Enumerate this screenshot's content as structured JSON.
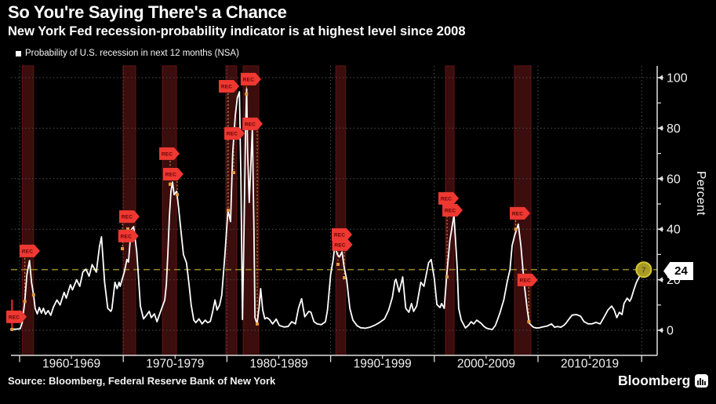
{
  "header": {
    "title": "So You're Saying There's a Chance",
    "subtitle": "New York Fed recession-probability indicator is at highest level since 2008"
  },
  "legend": {
    "label": "Probability of U.S. recession in next 12 months (NSA)",
    "swatch_color": "#ffffff"
  },
  "axes": {
    "y_title": "Percent",
    "y_ticks": [
      0,
      20,
      40,
      60,
      80,
      100
    ],
    "y_minor_ticks": [
      10,
      30,
      50,
      70,
      90
    ],
    "x_labels": [
      "1960-1969",
      "1970-1979",
      "1980-1989",
      "1990-1999",
      "2000-2009",
      "2010-2019"
    ]
  },
  "current": {
    "value": 24,
    "value_label": "24",
    "point_label": "7"
  },
  "footer": {
    "source": "Source: Bloomberg, Federal Reserve Bank of New York",
    "brand": "Bloomberg",
    "brand_icon": "bar-chart-icon"
  },
  "colors": {
    "background": "#000000",
    "band": "#3b0d0d",
    "band_edge": "#661313",
    "flag": "#ee3831",
    "flag_text": "#5f0707",
    "leader": "#c98a3a",
    "marker": "#e09a40",
    "pole": "#cc2626",
    "threshold": "#8e8122",
    "point_fill": "#a89b26",
    "point_ring": "#d6c832",
    "point_text": "#5f5716",
    "curve": "#ffffff",
    "grid": "#4f4f4f",
    "axis": "#e0e0e0",
    "label": "#f2f2f2",
    "badge_bg": "#ffffff",
    "badge_text": "#000000"
  },
  "chart_data": {
    "type": "line",
    "title": "So You're Saying There's a Chance",
    "subtitle": "New York Fed recession-probability indicator is at highest level since 2008",
    "xlabel": "",
    "ylabel": "Percent",
    "ylim": [
      0,
      100
    ],
    "x_range_years": [
      1959.1,
      2021.5
    ],
    "grid": true,
    "legend_position": "top-left",
    "x_decade_lines": [
      1960,
      1970,
      1980,
      1990,
      2000,
      2010,
      2020
    ],
    "x_tick_label_ranges": [
      "1960-1969",
      "1970-1979",
      "1980-1989",
      "1990-1999",
      "2000-2009",
      "2010-2019"
    ],
    "threshold": {
      "value": 24,
      "style": "dashed"
    },
    "end_point": {
      "year": 2020.2,
      "value": 24,
      "label": "7"
    },
    "recession_bands": [
      [
        1960.25,
        1961.35
      ],
      [
        1969.98,
        1971.2
      ],
      [
        1973.77,
        1975.13
      ],
      [
        1979.89,
        1980.95
      ],
      [
        1981.56,
        1983.07
      ],
      [
        1990.5,
        1991.45
      ],
      [
        2001.08,
        2001.91
      ],
      [
        2007.73,
        2009.32
      ]
    ],
    "rec_flags": [
      {
        "label": "REC",
        "year": 1959.7,
        "value": 5.3,
        "marker_year": 1959.27,
        "marker_value": 0.3,
        "solid": true
      },
      {
        "label": "REC",
        "year": 1960.98,
        "value": 31.4,
        "marker_year": 1960.5,
        "marker_value": 11.4
      },
      {
        "label": "REC",
        "year": 1970.59,
        "value": 45.0,
        "marker_year": 1969.91,
        "marker_value": 32.3
      },
      {
        "label": "REC",
        "year": 1970.5,
        "value": 37.3,
        "marker_year": 1970.44,
        "marker_value": 40.1
      },
      {
        "label": "REC",
        "year": 1974.45,
        "value": 69.9,
        "marker_year": 1974.52,
        "marker_value": 57.8
      },
      {
        "label": "REC",
        "year": 1974.82,
        "value": 61.8,
        "marker_year": 1975.2,
        "marker_value": 53.7
      },
      {
        "label": "REC",
        "year": 1980.2,
        "value": 96.6,
        "marker_year": 1980.12,
        "marker_value": 47.5
      },
      {
        "label": "REC",
        "year": 1980.73,
        "value": 77.9,
        "marker_year": 1980.65,
        "marker_value": 62.4
      },
      {
        "label": "REC",
        "year": 1982.31,
        "value": 99.4,
        "marker_year": 1981.88,
        "marker_value": 93.5
      },
      {
        "label": "REC",
        "year": 1982.47,
        "value": 81.7,
        "marker_year": 1982.92,
        "marker_value": 2.5
      },
      {
        "label": "REC",
        "year": 1991.09,
        "value": 37.9,
        "marker_year": 1990.71,
        "marker_value": 26.1
      },
      {
        "label": "REC",
        "year": 1991.13,
        "value": 33.9,
        "marker_year": 1991.32,
        "marker_value": 20.8
      },
      {
        "label": "REC",
        "year": 2001.38,
        "value": 52.2,
        "marker_year": 2001.23,
        "marker_value": 21.1
      },
      {
        "label": "REC",
        "year": 2001.76,
        "value": 47.5,
        "marker_year": 2001.91,
        "marker_value": 46.3
      },
      {
        "label": "REC",
        "year": 2008.26,
        "value": 46.3,
        "marker_year": 2007.85,
        "marker_value": 40.0
      },
      {
        "label": "REC",
        "year": 2009.0,
        "value": 19.9,
        "marker_year": 2009.12,
        "marker_value": 3.4
      }
    ],
    "extra_markers": [
      [
        1961.35,
        14
      ]
    ],
    "series": [
      {
        "name": "Probability of U.S. recession in next 12 months (NSA)",
        "color": "#ffffff",
        "points": [
          [
            1959.15,
            0.4
          ],
          [
            1959.6,
            0.4
          ],
          [
            1960.05,
            0.6
          ],
          [
            1960.25,
            3
          ],
          [
            1960.5,
            11.4
          ],
          [
            1960.7,
            22
          ],
          [
            1960.95,
            27.6
          ],
          [
            1961.15,
            19
          ],
          [
            1961.35,
            14
          ],
          [
            1961.5,
            8.7
          ],
          [
            1961.7,
            6.5
          ],
          [
            1961.9,
            9
          ],
          [
            1962.1,
            6.8
          ],
          [
            1962.3,
            8.7
          ],
          [
            1962.5,
            6.3
          ],
          [
            1962.75,
            7.8
          ],
          [
            1963.0,
            5.9
          ],
          [
            1963.25,
            9.1
          ],
          [
            1963.6,
            12
          ],
          [
            1963.9,
            10
          ],
          [
            1964.3,
            15
          ],
          [
            1964.5,
            12.7
          ],
          [
            1964.9,
            18
          ],
          [
            1965.1,
            16
          ],
          [
            1965.5,
            20
          ],
          [
            1965.8,
            17.4
          ],
          [
            1966.1,
            23
          ],
          [
            1966.4,
            24.2
          ],
          [
            1966.7,
            21.4
          ],
          [
            1967.0,
            26
          ],
          [
            1967.4,
            23
          ],
          [
            1967.7,
            33
          ],
          [
            1967.9,
            37
          ],
          [
            1968.2,
            19
          ],
          [
            1968.5,
            8.7
          ],
          [
            1968.8,
            7.5
          ],
          [
            1968.9,
            8.5
          ],
          [
            1969.2,
            19
          ],
          [
            1969.4,
            16.5
          ],
          [
            1969.6,
            19
          ],
          [
            1969.7,
            17.4
          ],
          [
            1970.1,
            23
          ],
          [
            1970.35,
            28
          ],
          [
            1970.5,
            27
          ],
          [
            1970.75,
            39.7
          ],
          [
            1971.0,
            41
          ],
          [
            1971.3,
            31
          ],
          [
            1971.5,
            19
          ],
          [
            1971.65,
            9.6
          ],
          [
            1971.95,
            4.5
          ],
          [
            1972.25,
            6
          ],
          [
            1972.5,
            7.5
          ],
          [
            1972.7,
            5
          ],
          [
            1973.0,
            6.5
          ],
          [
            1973.25,
            3.4
          ],
          [
            1973.6,
            7.5
          ],
          [
            1974.0,
            12
          ],
          [
            1974.15,
            18
          ],
          [
            1974.3,
            30
          ],
          [
            1974.45,
            45
          ],
          [
            1974.6,
            55
          ],
          [
            1974.75,
            58.7
          ],
          [
            1974.9,
            53.7
          ],
          [
            1975.15,
            55
          ],
          [
            1975.35,
            48
          ],
          [
            1975.6,
            38
          ],
          [
            1975.8,
            30
          ],
          [
            1976.1,
            26.7
          ],
          [
            1976.35,
            18
          ],
          [
            1976.55,
            10
          ],
          [
            1976.8,
            4
          ],
          [
            1977.0,
            3
          ],
          [
            1977.3,
            4.5
          ],
          [
            1977.6,
            2.5
          ],
          [
            1977.9,
            4
          ],
          [
            1978.15,
            3
          ],
          [
            1978.4,
            3.5
          ],
          [
            1978.6,
            7
          ],
          [
            1978.85,
            12
          ],
          [
            1979.05,
            8
          ],
          [
            1979.3,
            10
          ],
          [
            1979.5,
            14
          ],
          [
            1979.8,
            30
          ],
          [
            1980.1,
            47.5
          ],
          [
            1980.35,
            43
          ],
          [
            1980.55,
            70
          ],
          [
            1980.8,
            85
          ],
          [
            1981.0,
            92
          ],
          [
            1981.2,
            94.4
          ],
          [
            1981.35,
            60
          ],
          [
            1981.5,
            4.3
          ],
          [
            1981.65,
            40
          ],
          [
            1981.8,
            80
          ],
          [
            1981.9,
            95.6
          ],
          [
            1982.0,
            70
          ],
          [
            1982.15,
            50.6
          ],
          [
            1982.3,
            65
          ],
          [
            1982.45,
            80
          ],
          [
            1982.6,
            40
          ],
          [
            1982.7,
            5
          ],
          [
            1982.9,
            2.5
          ],
          [
            1983.1,
            9
          ],
          [
            1983.25,
            16.5
          ],
          [
            1983.45,
            8
          ],
          [
            1983.65,
            4.5
          ],
          [
            1983.85,
            5
          ],
          [
            1984.1,
            4.3
          ],
          [
            1984.4,
            2.5
          ],
          [
            1984.75,
            4.4
          ],
          [
            1985.05,
            1.9
          ],
          [
            1985.5,
            1.3
          ],
          [
            1985.9,
            1.5
          ],
          [
            1986.25,
            3.4
          ],
          [
            1986.6,
            2.5
          ],
          [
            1986.9,
            8.7
          ],
          [
            1987.2,
            12.5
          ],
          [
            1987.5,
            5.3
          ],
          [
            1987.9,
            7.5
          ],
          [
            1988.1,
            7.1
          ],
          [
            1988.4,
            3.4
          ],
          [
            1988.7,
            2.5
          ],
          [
            1989.1,
            2.2
          ],
          [
            1989.5,
            3.4
          ],
          [
            1989.7,
            8
          ],
          [
            1990.0,
            22
          ],
          [
            1990.25,
            28
          ],
          [
            1990.4,
            33.5
          ],
          [
            1990.65,
            30
          ],
          [
            1990.85,
            29
          ],
          [
            1991.1,
            31
          ],
          [
            1991.3,
            25
          ],
          [
            1991.55,
            20
          ],
          [
            1991.85,
            8.7
          ],
          [
            1992.15,
            4
          ],
          [
            1992.55,
            1.8
          ],
          [
            1992.9,
            1
          ],
          [
            1993.35,
            0.8
          ],
          [
            1993.8,
            1.2
          ],
          [
            1994.25,
            2
          ],
          [
            1994.7,
            3
          ],
          [
            1995.2,
            4.5
          ],
          [
            1995.6,
            8
          ],
          [
            1995.95,
            13
          ],
          [
            1996.2,
            19.6
          ],
          [
            1996.3,
            20.2
          ],
          [
            1996.6,
            15.2
          ],
          [
            1996.95,
            21.1
          ],
          [
            1997.25,
            8.7
          ],
          [
            1997.55,
            7.1
          ],
          [
            1997.8,
            10.6
          ],
          [
            1998.0,
            7.5
          ],
          [
            1998.3,
            9.6
          ],
          [
            1998.7,
            19
          ],
          [
            1999.0,
            17.4
          ],
          [
            1999.45,
            26.7
          ],
          [
            1999.7,
            28
          ],
          [
            2000.0,
            20.5
          ],
          [
            2000.25,
            10.2
          ],
          [
            2000.55,
            9
          ],
          [
            2000.7,
            10.6
          ],
          [
            2000.95,
            8.7
          ],
          [
            2001.2,
            22
          ],
          [
            2001.5,
            35.4
          ],
          [
            2001.9,
            45.6
          ],
          [
            2002.2,
            25.2
          ],
          [
            2002.35,
            8.7
          ],
          [
            2002.6,
            4
          ],
          [
            2003.0,
            0.9
          ],
          [
            2003.3,
            2
          ],
          [
            2003.55,
            3.4
          ],
          [
            2003.8,
            2.5
          ],
          [
            2004.1,
            4
          ],
          [
            2004.5,
            2.8
          ],
          [
            2004.8,
            1.5
          ],
          [
            2005.0,
            0.9
          ],
          [
            2005.3,
            0.5
          ],
          [
            2005.6,
            0.3
          ],
          [
            2005.9,
            2
          ],
          [
            2006.3,
            6.5
          ],
          [
            2006.7,
            12
          ],
          [
            2007.05,
            19.6
          ],
          [
            2007.3,
            24
          ],
          [
            2007.5,
            33.5
          ],
          [
            2007.75,
            37.6
          ],
          [
            2007.95,
            40
          ],
          [
            2008.1,
            42
          ],
          [
            2008.35,
            33.5
          ],
          [
            2008.55,
            24
          ],
          [
            2008.7,
            17.4
          ],
          [
            2008.95,
            8.7
          ],
          [
            2009.15,
            2.8
          ],
          [
            2009.55,
            1.2
          ],
          [
            2009.85,
            0.9
          ],
          [
            2010.15,
            1
          ],
          [
            2010.45,
            1.3
          ],
          [
            2010.85,
            1.6
          ],
          [
            2011.3,
            2.5
          ],
          [
            2011.6,
            1.2
          ],
          [
            2011.9,
            1.5
          ],
          [
            2012.2,
            1.2
          ],
          [
            2012.5,
            2
          ],
          [
            2012.7,
            2.8
          ],
          [
            2013.0,
            4.5
          ],
          [
            2013.3,
            6
          ],
          [
            2013.7,
            6.2
          ],
          [
            2014.1,
            5.6
          ],
          [
            2014.45,
            3.4
          ],
          [
            2014.85,
            2.5
          ],
          [
            2015.2,
            2.5
          ],
          [
            2015.6,
            3.1
          ],
          [
            2016.0,
            2.5
          ],
          [
            2016.35,
            5
          ],
          [
            2016.75,
            8
          ],
          [
            2017.1,
            9.6
          ],
          [
            2017.35,
            8
          ],
          [
            2017.6,
            5
          ],
          [
            2017.85,
            7.1
          ],
          [
            2018.1,
            6.2
          ],
          [
            2018.3,
            10.6
          ],
          [
            2018.6,
            12.7
          ],
          [
            2018.85,
            11.5
          ],
          [
            2019.0,
            12.7
          ],
          [
            2019.25,
            16.1
          ],
          [
            2019.5,
            19
          ],
          [
            2019.75,
            21
          ],
          [
            2020.0,
            23
          ],
          [
            2020.2,
            24
          ]
        ]
      }
    ]
  }
}
